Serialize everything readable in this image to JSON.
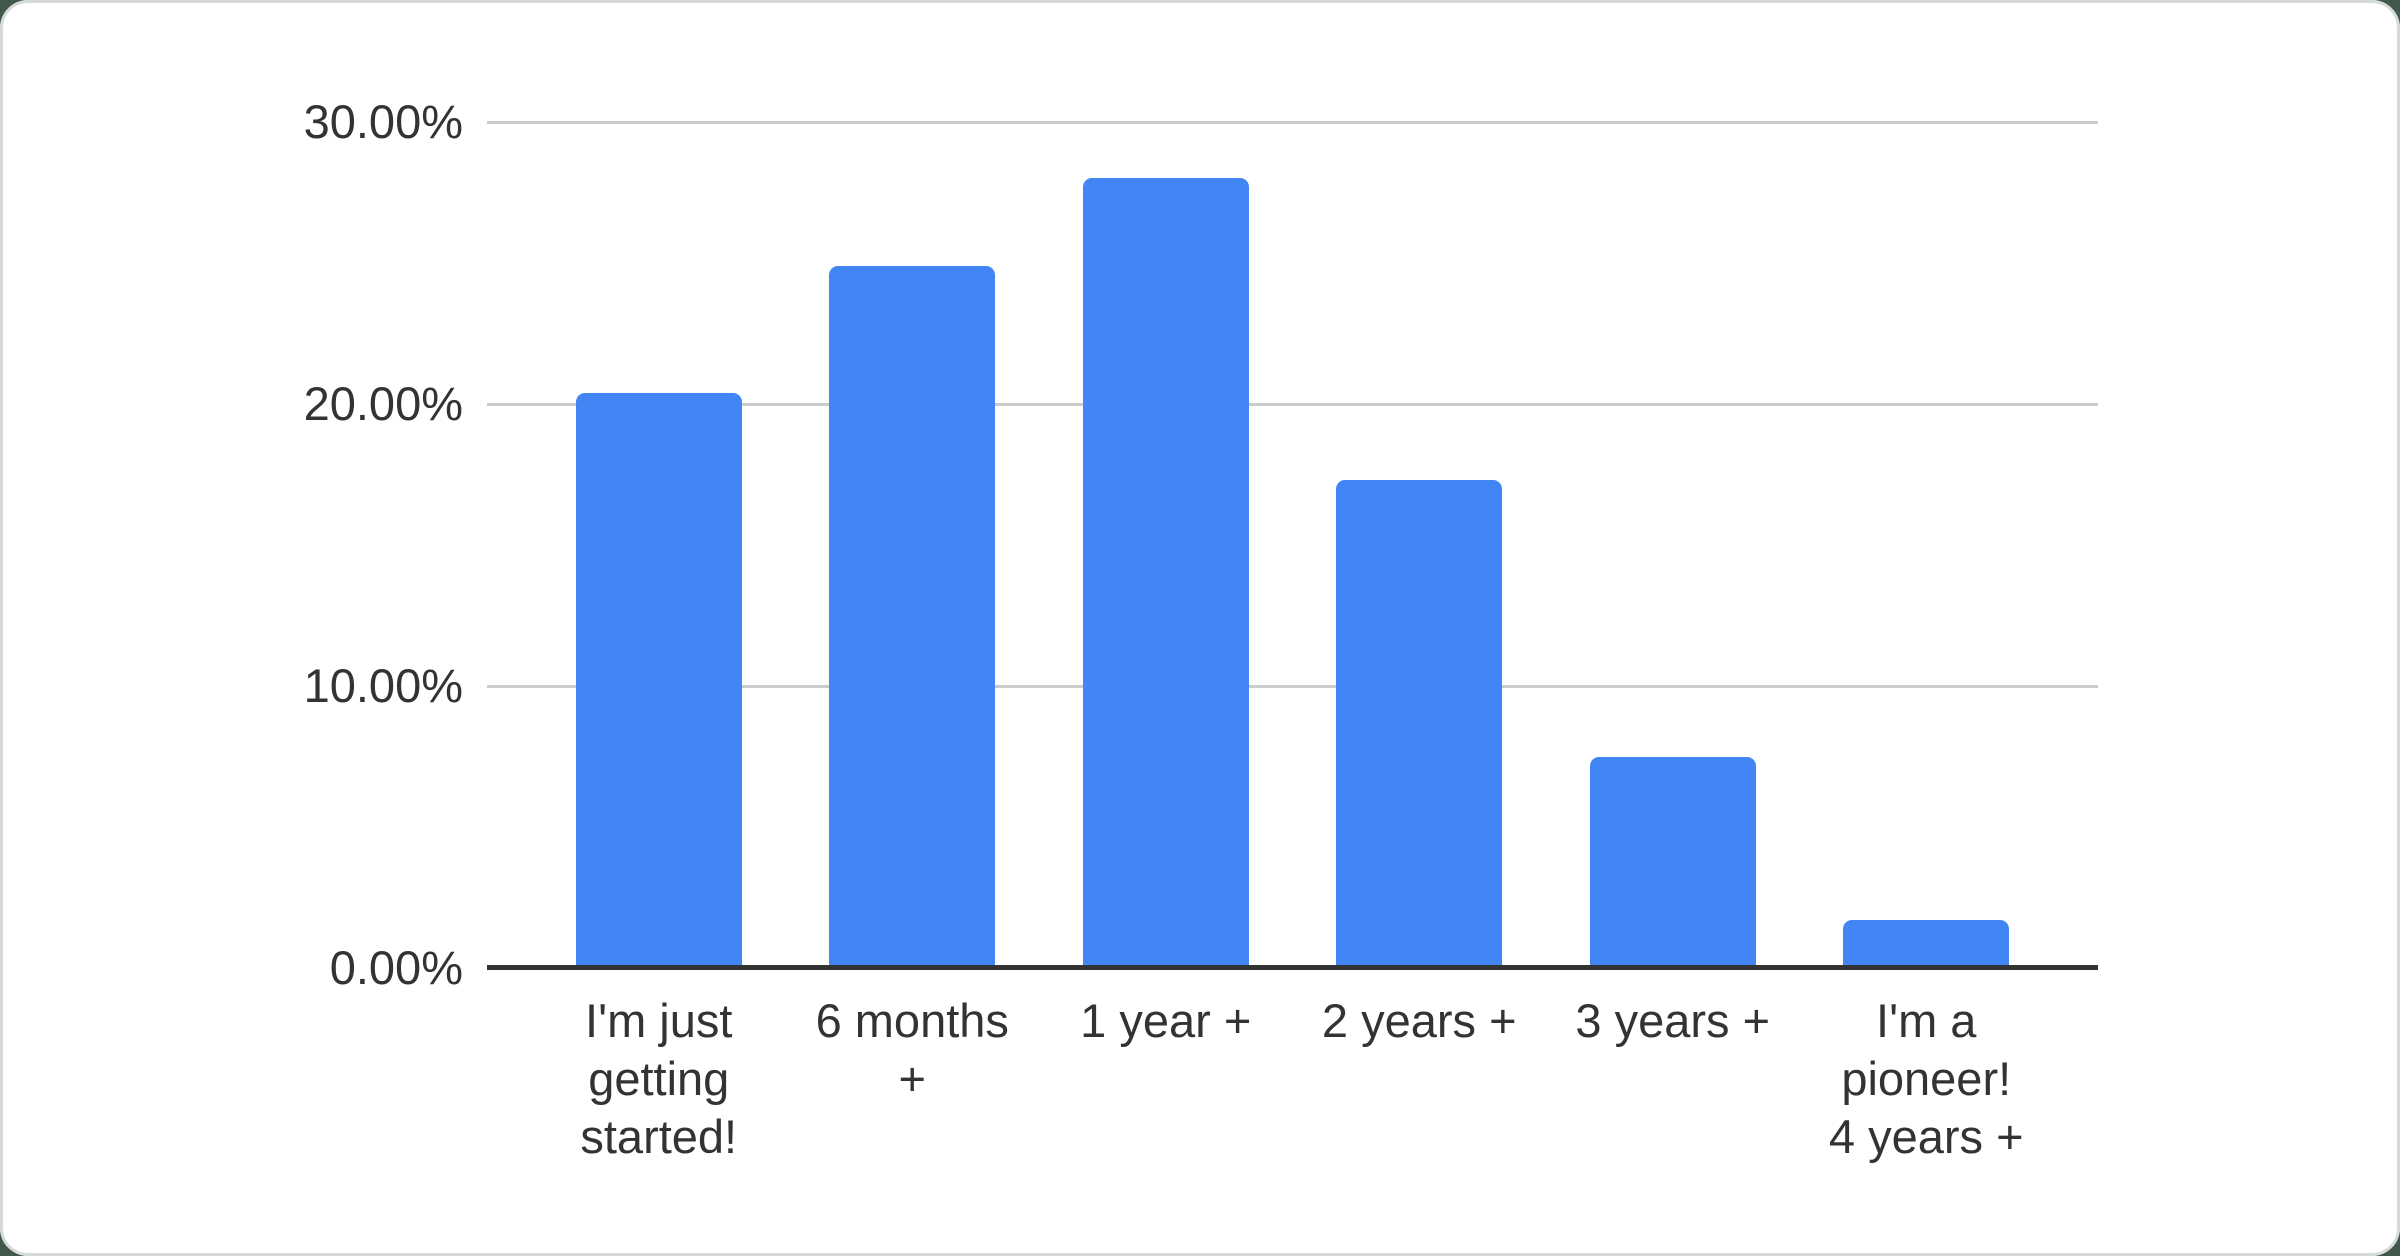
{
  "page": {
    "background_color": "#41584a"
  },
  "card": {
    "background_color": "#ffffff",
    "border_color": "#d6dadd"
  },
  "chart_data": {
    "type": "bar",
    "title": "",
    "xlabel": "",
    "ylabel": "",
    "categories": [
      "I'm just getting started!",
      "6 months +",
      "1 year +",
      "2 years +",
      "3 years +",
      "I'm a pioneer! 4 years +"
    ],
    "x_tick_display": [
      "I'm just\ngetting\nstarted!",
      "6 months\n+",
      "1 year +",
      "2 years +",
      "3 years +",
      "I'm a\npioneer!\n4 years +"
    ],
    "values": [
      20.4,
      24.9,
      28.0,
      17.3,
      7.5,
      1.7
    ],
    "unit": "%",
    "ylim": [
      0,
      30
    ],
    "y_ticks": [
      {
        "label": "30.00%",
        "value": 30
      },
      {
        "label": "20.00%",
        "value": 20
      },
      {
        "label": "10.00%",
        "value": 10
      },
      {
        "label": "0.00%",
        "value": 0
      }
    ],
    "grid": true,
    "legend_position": "none",
    "bar_color": "#4285f4",
    "gridline_color": "#cccccc",
    "axis_line_color": "#333333",
    "label_color": "#333333"
  }
}
